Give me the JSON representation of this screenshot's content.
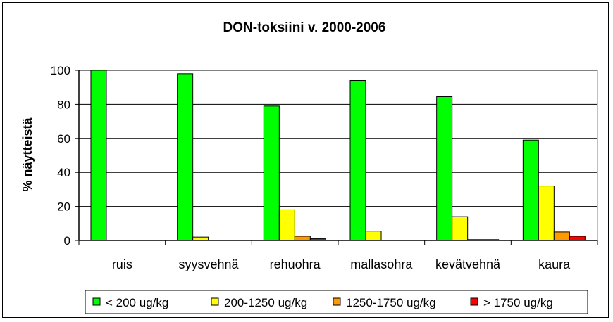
{
  "chart_data": {
    "type": "bar",
    "title": "DON-toksiini v. 2000-2006",
    "xlabel": "",
    "ylabel": "% näytteistä",
    "ylim": [
      0,
      100
    ],
    "yticks": [
      0,
      20,
      40,
      60,
      80,
      100
    ],
    "grid": true,
    "legend_position": "bottom",
    "categories": [
      "ruis",
      "syysvehnä",
      "rehuohra",
      "mallasohra",
      "kevätvehnä",
      "kaura"
    ],
    "series": [
      {
        "name": "< 200 ug/kg",
        "color": "#00ff00",
        "values": [
          100,
          98,
          79,
          94,
          84.5,
          59
        ]
      },
      {
        "name": "200-1250 ug/kg",
        "color": "#ffff00",
        "values": [
          0,
          2,
          18,
          5.5,
          14,
          32
        ]
      },
      {
        "name": "1250-1750 ug/kg",
        "color": "#ff9900",
        "values": [
          0,
          0,
          2.5,
          0,
          0.5,
          5
        ]
      },
      {
        "name": "> 1750 ug/kg",
        "color": "#ff0000",
        "values": [
          0,
          0,
          1,
          0,
          0.5,
          2.5
        ]
      }
    ]
  }
}
